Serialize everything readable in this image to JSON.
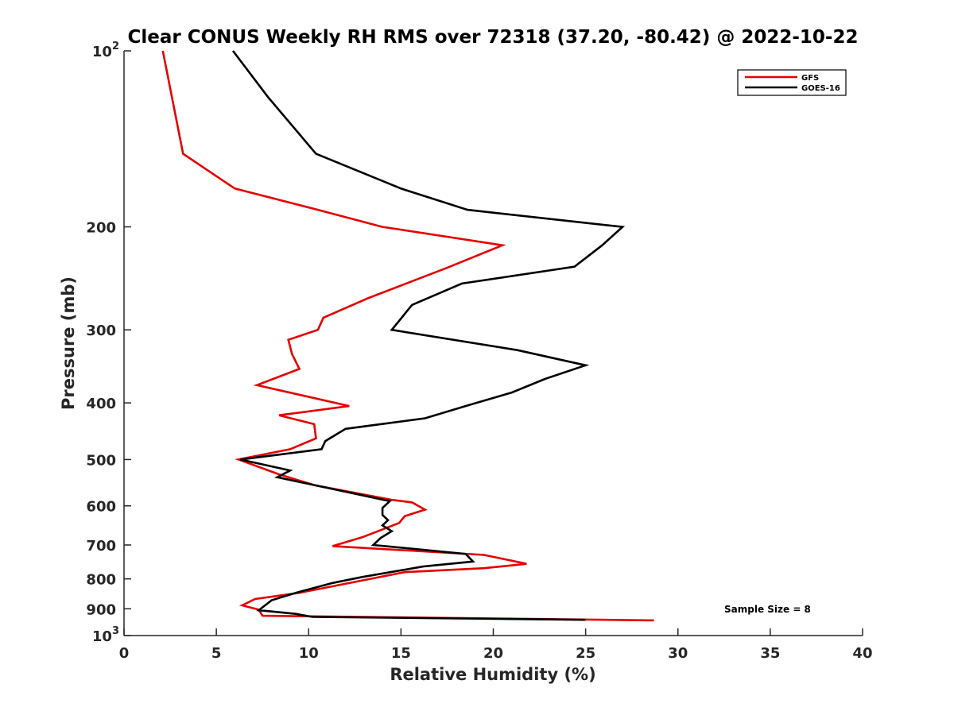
{
  "chart_data": {
    "type": "line",
    "title": "Clear CONUS Weekly RH RMS over 72318 (37.20, -80.42) @ 2022-10-22",
    "xlabel": "Relative Humidity (%)",
    "ylabel": "Pressure (mb)",
    "xlim": [
      0,
      40
    ],
    "ylim": [
      100,
      1000
    ],
    "y_scale": "log",
    "y_reversed": true,
    "x_ticks": [
      0,
      5,
      10,
      15,
      20,
      25,
      30,
      35,
      40
    ],
    "y_ticks": [
      {
        "value": 100,
        "label": "10",
        "sup": "2"
      },
      {
        "value": 200,
        "label": "200"
      },
      {
        "value": 300,
        "label": "300"
      },
      {
        "value": 400,
        "label": "400"
      },
      {
        "value": 500,
        "label": "500"
      },
      {
        "value": 600,
        "label": "600"
      },
      {
        "value": 700,
        "label": "700"
      },
      {
        "value": 800,
        "label": "800"
      },
      {
        "value": 900,
        "label": "900"
      },
      {
        "value": 1000,
        "label": "10",
        "sup": "3"
      }
    ],
    "grid": false,
    "legend_position": "top-right",
    "annotation": "Sample Size = 8",
    "series": [
      {
        "name": "GFS",
        "color": "#e50000",
        "points": [
          [
            2.1,
            100
          ],
          [
            3.2,
            150
          ],
          [
            6.0,
            172
          ],
          [
            10.5,
            187
          ],
          [
            14.0,
            200
          ],
          [
            20.5,
            215
          ],
          [
            17.5,
            235
          ],
          [
            13.2,
            265
          ],
          [
            10.8,
            286
          ],
          [
            10.5,
            300
          ],
          [
            8.9,
            312
          ],
          [
            9.1,
            330
          ],
          [
            9.5,
            350
          ],
          [
            7.2,
            373
          ],
          [
            12.2,
            405
          ],
          [
            8.4,
            420
          ],
          [
            10.3,
            435
          ],
          [
            10.4,
            460
          ],
          [
            9.0,
            480
          ],
          [
            6.2,
            500
          ],
          [
            8.4,
            530
          ],
          [
            10.3,
            553
          ],
          [
            14.5,
            586
          ],
          [
            15.6,
            592
          ],
          [
            16.3,
            609
          ],
          [
            15.2,
            625
          ],
          [
            14.9,
            642
          ],
          [
            12.9,
            679
          ],
          [
            11.3,
            703
          ],
          [
            19.5,
            728
          ],
          [
            21.8,
            754
          ],
          [
            19.5,
            767
          ],
          [
            15.2,
            779
          ],
          [
            9.5,
            845
          ],
          [
            7.1,
            866
          ],
          [
            6.4,
            888
          ],
          [
            7.3,
            903
          ],
          [
            7.5,
            925
          ],
          [
            28.7,
            942
          ]
        ]
      },
      {
        "name": "GOES-16",
        "color": "#000000",
        "points": [
          [
            5.9,
            100
          ],
          [
            7.8,
            120
          ],
          [
            10.4,
            150
          ],
          [
            15.0,
            172
          ],
          [
            18.6,
            187
          ],
          [
            27.0,
            200
          ],
          [
            25.9,
            215
          ],
          [
            24.4,
            234
          ],
          [
            18.3,
            250
          ],
          [
            15.6,
            272
          ],
          [
            14.5,
            300
          ],
          [
            21.3,
            325
          ],
          [
            25.0,
            345
          ],
          [
            22.8,
            364
          ],
          [
            21.0,
            384
          ],
          [
            18.5,
            405
          ],
          [
            16.3,
            425
          ],
          [
            12.0,
            443
          ],
          [
            10.9,
            465
          ],
          [
            10.7,
            480
          ],
          [
            6.3,
            500
          ],
          [
            9.0,
            522
          ],
          [
            8.3,
            536
          ],
          [
            11.7,
            565
          ],
          [
            14.4,
            589
          ],
          [
            14.0,
            605
          ],
          [
            14.0,
            622
          ],
          [
            14.3,
            635
          ],
          [
            14.0,
            648
          ],
          [
            14.5,
            663
          ],
          [
            13.9,
            681
          ],
          [
            13.5,
            700
          ],
          [
            18.5,
            725
          ],
          [
            18.9,
            747
          ],
          [
            16.2,
            762
          ],
          [
            12.9,
            794
          ],
          [
            11.3,
            813
          ],
          [
            9.3,
            845
          ],
          [
            8.0,
            870
          ],
          [
            7.3,
            905
          ],
          [
            9.3,
            918
          ],
          [
            10.2,
            929
          ],
          [
            25.0,
            940
          ]
        ]
      }
    ]
  }
}
